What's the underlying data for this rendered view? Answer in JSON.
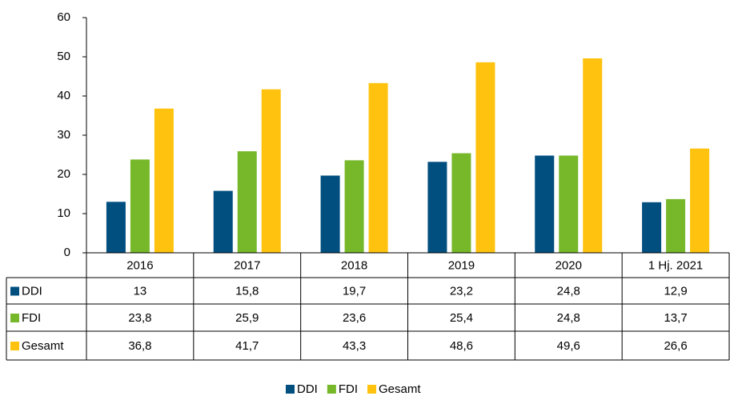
{
  "chart_data": {
    "type": "bar",
    "categories": [
      "2016",
      "2017",
      "2018",
      "2019",
      "2020",
      "1 Hj. 2021"
    ],
    "series": [
      {
        "name": "DDI",
        "color": "#004f7f",
        "values": [
          13,
          15.8,
          19.7,
          23.2,
          24.8,
          12.9
        ],
        "value_labels": [
          "13",
          "15,8",
          "19,7",
          "23,2",
          "24,8",
          "12,9"
        ]
      },
      {
        "name": "FDI",
        "color": "#76b82a",
        "values": [
          23.8,
          25.9,
          23.6,
          25.4,
          24.8,
          13.7
        ],
        "value_labels": [
          "23,8",
          "25,9",
          "23,6",
          "25,4",
          "24,8",
          "13,7"
        ]
      },
      {
        "name": "Gesamt",
        "color": "#ffc20e",
        "values": [
          36.8,
          41.7,
          43.3,
          48.6,
          49.6,
          26.6
        ],
        "value_labels": [
          "36,8",
          "41,7",
          "43,3",
          "48,6",
          "49,6",
          "26,6"
        ]
      }
    ],
    "ylim": [
      0,
      60
    ],
    "yticks": [
      0,
      10,
      20,
      30,
      40,
      50,
      60
    ],
    "grid": false,
    "legend": "bottom"
  }
}
